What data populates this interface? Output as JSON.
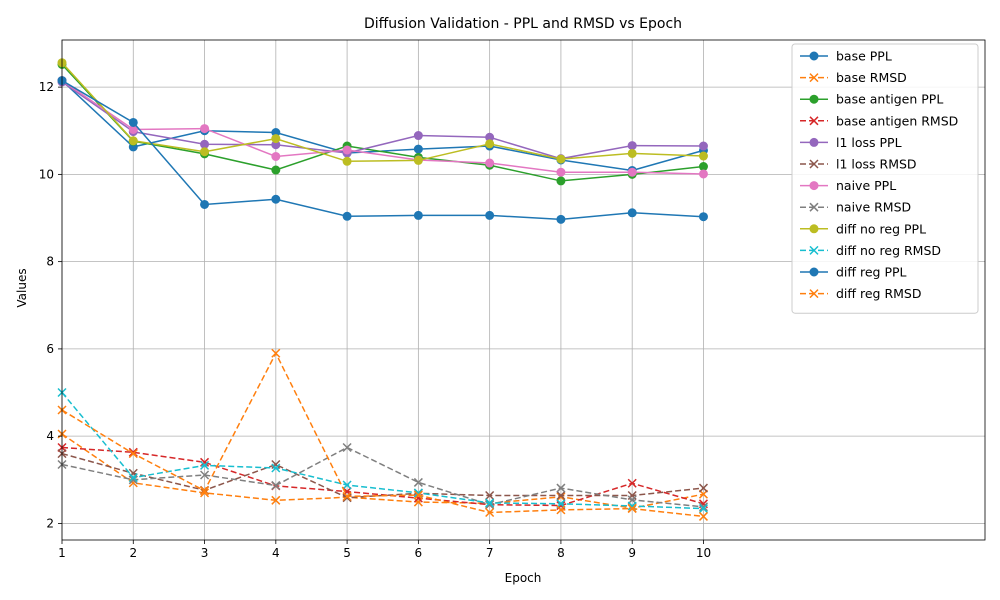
{
  "chart_data": {
    "type": "line",
    "title": "Diffusion Validation - PPL and RMSD vs Epoch",
    "xlabel": "Epoch",
    "ylabel": "Values",
    "x": [
      1,
      2,
      3,
      4,
      5,
      6,
      7,
      8,
      9,
      10
    ],
    "xlim": [
      1,
      13.95
    ],
    "ylim": [
      1.62,
      13.08
    ],
    "xticks": [
      1,
      2,
      3,
      4,
      5,
      6,
      7,
      8,
      9,
      10
    ],
    "yticks": [
      2,
      4,
      6,
      8,
      10,
      12
    ],
    "grid": true,
    "legend_position": "upper right",
    "series": [
      {
        "name": "base PPL",
        "color": "#1f77b4",
        "marker": "o",
        "dash": false,
        "values": [
          12.15,
          10.63,
          11.0,
          10.96,
          10.49,
          10.58,
          10.65,
          10.33,
          10.09,
          10.55
        ]
      },
      {
        "name": "base RMSD",
        "color": "#ff7f0e",
        "marker": "x",
        "dash": true,
        "values": [
          4.05,
          2.93,
          2.7,
          2.53,
          2.6,
          2.49,
          2.46,
          2.61,
          2.35,
          2.67
        ]
      },
      {
        "name": "base antigen PPL",
        "color": "#2ca02c",
        "marker": "o",
        "dash": false,
        "values": [
          12.52,
          10.76,
          10.47,
          10.1,
          10.65,
          10.39,
          10.21,
          9.85,
          10.0,
          10.18
        ]
      },
      {
        "name": "base antigen RMSD",
        "color": "#d62728",
        "marker": "x",
        "dash": true,
        "values": [
          3.74,
          3.63,
          3.4,
          2.86,
          2.73,
          2.58,
          2.43,
          2.41,
          2.92,
          2.45
        ]
      },
      {
        "name": "l1 loss PPL",
        "color": "#9467bd",
        "marker": "o",
        "dash": false,
        "values": [
          12.12,
          10.98,
          10.69,
          10.68,
          10.49,
          10.89,
          10.85,
          10.36,
          10.66,
          10.65
        ]
      },
      {
        "name": "l1 loss RMSD",
        "color": "#8c564b",
        "marker": "x",
        "dash": true,
        "values": [
          3.6,
          3.15,
          2.76,
          3.35,
          2.59,
          2.69,
          2.64,
          2.64,
          2.64,
          2.81
        ]
      },
      {
        "name": "naive PPL",
        "color": "#e377c2",
        "marker": "o",
        "dash": false,
        "values": [
          12.15,
          11.03,
          11.05,
          10.41,
          10.56,
          10.33,
          10.26,
          10.05,
          10.05,
          10.01
        ]
      },
      {
        "name": "naive RMSD",
        "color": "#7f7f7f",
        "marker": "x",
        "dash": true,
        "values": [
          3.35,
          3.0,
          3.11,
          2.87,
          3.74,
          2.94,
          2.43,
          2.81,
          2.54,
          2.38
        ]
      },
      {
        "name": "diff no reg PPL",
        "color": "#bcbd22",
        "marker": "o",
        "dash": false,
        "values": [
          12.56,
          10.77,
          10.52,
          10.82,
          10.3,
          10.32,
          10.7,
          10.35,
          10.48,
          10.42
        ]
      },
      {
        "name": "diff no reg RMSD",
        "color": "#17becf",
        "marker": "x",
        "dash": true,
        "values": [
          5.0,
          3.05,
          3.33,
          3.27,
          2.88,
          2.7,
          2.47,
          2.45,
          2.4,
          2.34
        ]
      },
      {
        "name": "diff reg PPL",
        "color": "#1f77b4",
        "marker": "o",
        "dash": false,
        "values": [
          12.15,
          11.19,
          9.31,
          9.43,
          9.04,
          9.06,
          9.06,
          8.97,
          9.12,
          9.03
        ]
      },
      {
        "name": "diff reg RMSD",
        "color": "#ff7f0e",
        "marker": "x",
        "dash": true,
        "values": [
          4.6,
          3.6,
          2.75,
          5.9,
          2.62,
          2.65,
          2.25,
          2.31,
          2.34,
          2.16
        ]
      }
    ]
  }
}
